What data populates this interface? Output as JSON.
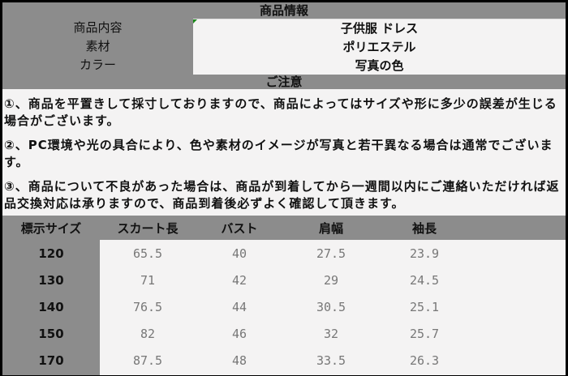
{
  "info": {
    "title": "商品情報",
    "rows": [
      {
        "label": "商品内容",
        "value": "子供服 ドレス"
      },
      {
        "label": "素材",
        "value": "ポリエステル"
      },
      {
        "label": "カラー",
        "value": "写真の色"
      }
    ]
  },
  "notice": {
    "title": "ご注意",
    "items": [
      "①、商品を平置きして採寸しておりますので、商品によってはサイズや形に多少の誤差が生じる場合がございます。",
      "②、PC環境や光の具合により、色や素材のイメージが写真と若干異なる場合は通常でございます。",
      "③、商品について不良があった場合は、商品が到着してから一週間以内にご連絡いただければ返品交換対応は承りますので、商品到着後必ずよく確認して頂きます。"
    ]
  },
  "sizes": {
    "headers": [
      "標示サイズ",
      "スカート長",
      "バスト",
      "肩幅",
      "袖長"
    ],
    "rows": [
      [
        "120",
        "65.5",
        "40",
        "27.5",
        "23.9"
      ],
      [
        "130",
        "71",
        "42",
        "29",
        "24.5"
      ],
      [
        "140",
        "76.5",
        "44",
        "30.5",
        "25.1"
      ],
      [
        "150",
        "82",
        "46",
        "32",
        "25.7"
      ],
      [
        "170",
        "87.5",
        "48",
        "33.5",
        "26.3"
      ]
    ]
  },
  "colors": {
    "panel": "#8c8c8c",
    "cell": "#f4f3f3",
    "border": "#000000"
  }
}
